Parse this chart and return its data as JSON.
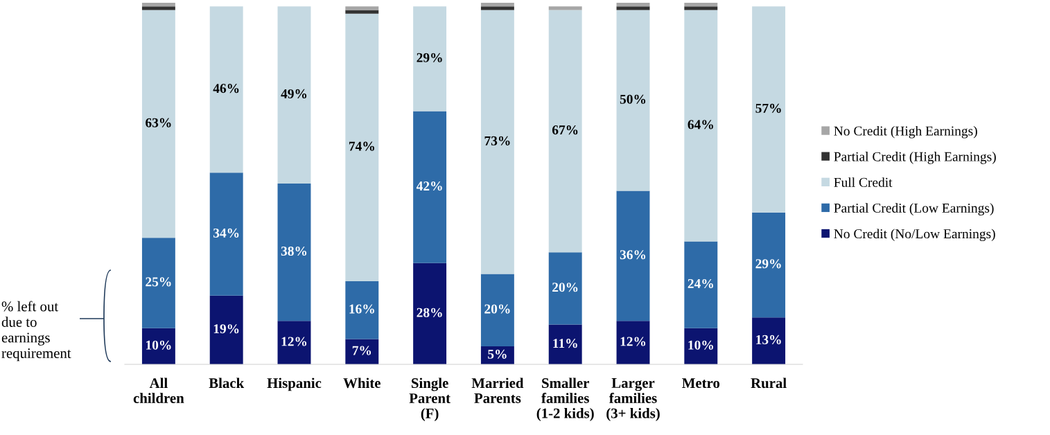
{
  "chart_data": {
    "type": "bar",
    "stacked": true,
    "legend": "right",
    "grid": false,
    "categories": [
      "All\nchildren",
      "Black",
      "Hispanic",
      "White",
      "Single\nParent\n(F)",
      "Married\nParents",
      "Smaller\nfamilies\n(1-2 kids)",
      "Larger\nfamilies\n(3+ kids)",
      "Metro",
      "Rural"
    ],
    "series": [
      {
        "name": "No Credit (No/Low Earnings)",
        "color": "#0c1470",
        "values": [
          10,
          19,
          12,
          7,
          28,
          5,
          11,
          12,
          10,
          13
        ],
        "value_labels": [
          "10%",
          "19%",
          "12%",
          "7%",
          "28%",
          "5%",
          "11%",
          "12%",
          "10%",
          "13%"
        ]
      },
      {
        "name": "Partial Credit (Low Earnings)",
        "color": "#2e6ba8",
        "values": [
          25,
          34,
          38,
          16,
          42,
          20,
          20,
          36,
          24,
          29
        ],
        "value_labels": [
          "25%",
          "34%",
          "38%",
          "16%",
          "42%",
          "20%",
          "20%",
          "36%",
          "24%",
          "29%"
        ]
      },
      {
        "name": "Full Credit",
        "color": "#c5d9e2",
        "values": [
          63,
          46,
          49,
          74,
          29,
          73,
          67,
          50,
          64,
          57
        ],
        "value_labels": [
          "63%",
          "46%",
          "49%",
          "74%",
          "29%",
          "73%",
          "67%",
          "50%",
          "64%",
          "57%"
        ]
      },
      {
        "name": "Partial Credit (High Earnings)",
        "color": "#333333",
        "values": [
          1,
          0,
          0,
          1,
          0,
          1,
          0,
          1,
          1,
          0
        ]
      },
      {
        "name": "No Credit (High Earnings)",
        "color": "#a6a6a6",
        "values": [
          1,
          0,
          0,
          1,
          0,
          1,
          1,
          1,
          1,
          0
        ]
      }
    ],
    "annotations": [
      "% left out\ndue to\nearnings\nrequirement"
    ]
  }
}
